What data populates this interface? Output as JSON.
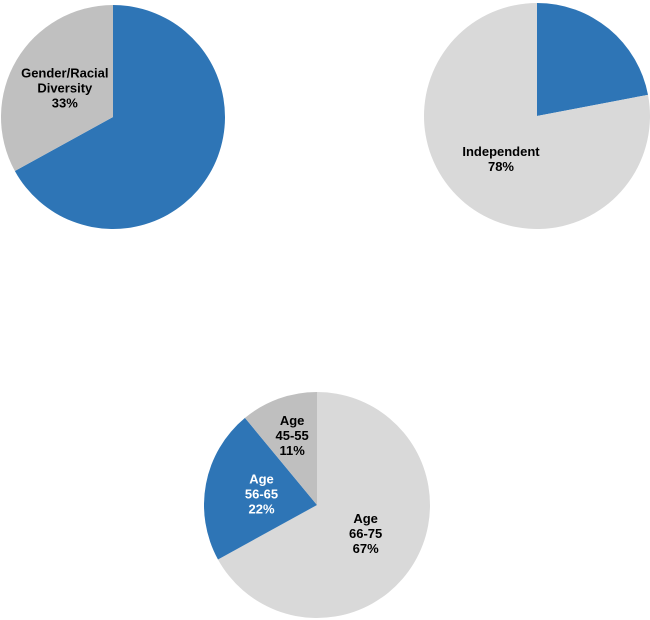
{
  "chart_data": [
    {
      "type": "pie",
      "categories": [
        null,
        "Gender/Racial Diversity"
      ],
      "values": [
        67,
        33
      ],
      "value_labels": [
        null,
        "33%"
      ],
      "colors": [
        "#2e75b6",
        "#c0c0c0"
      ]
    },
    {
      "type": "pie",
      "categories": [
        null,
        "Independent"
      ],
      "values": [
        22,
        78
      ],
      "value_labels": [
        null,
        "78%"
      ],
      "colors": [
        "#2e75b6",
        "#d9d9d9"
      ]
    },
    {
      "type": "pie",
      "categories": [
        "Age 66-75",
        "Age 56-65",
        "Age 45-55"
      ],
      "values": [
        67,
        22,
        11
      ],
      "value_labels": [
        "67%",
        "22%",
        "11%"
      ],
      "colors": [
        "#d9d9d9",
        "#2e75b6",
        "#bfbfbf"
      ]
    }
  ]
}
